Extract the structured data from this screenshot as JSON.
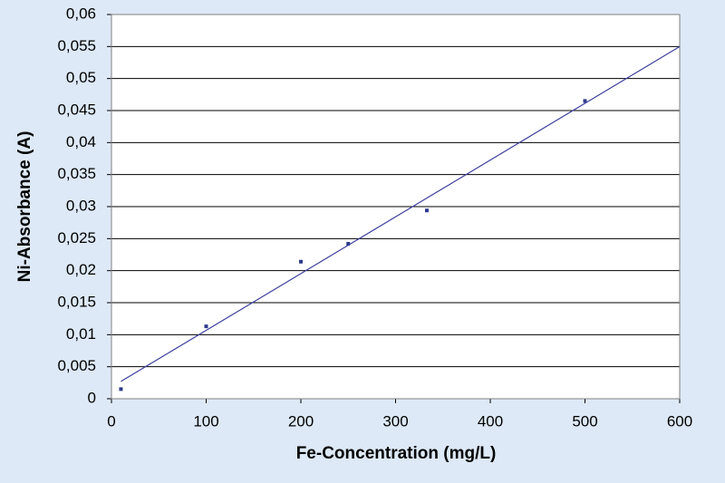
{
  "chart_data": {
    "type": "scatter",
    "x_label": "Fe-Concentration (mg/L)",
    "y_label": "Ni-Absorbance (A)",
    "xlim": [
      0,
      600
    ],
    "xticks": [
      0,
      100,
      200,
      300,
      400,
      500,
      600
    ],
    "ylim": [
      0,
      0.06
    ],
    "yticks": [
      0,
      {
        "value": 0.005,
        "label": "0,005"
      },
      {
        "value": 0.01,
        "label": "0,01"
      },
      {
        "value": 0.015,
        "label": "0,015"
      },
      {
        "value": 0.02,
        "label": "0,02"
      },
      {
        "value": 0.025,
        "label": "0,025"
      },
      {
        "value": 0.03,
        "label": "0,03"
      },
      {
        "value": 0.035,
        "label": "0,035"
      },
      {
        "value": 0.04,
        "label": "0,04"
      },
      {
        "value": 0.045,
        "label": "0,045"
      },
      {
        "value": 0.05,
        "label": "0,05"
      },
      {
        "value": 0.055,
        "label": "0,055"
      },
      {
        "value": 0.06,
        "label": "0,06"
      }
    ],
    "grid": true,
    "series": [
      {
        "mode": "markers",
        "color": "#2e3a8c",
        "x": [
          10,
          100,
          200,
          250,
          333,
          500
        ],
        "values": [
          0.0015,
          0.0113,
          0.0214,
          0.0242,
          0.0294,
          0.0465
        ]
      },
      {
        "mode": "line",
        "color": "#3b3f9e",
        "x": [
          10,
          600
        ],
        "values": [
          0.0027,
          0.055
        ]
      }
    ]
  }
}
